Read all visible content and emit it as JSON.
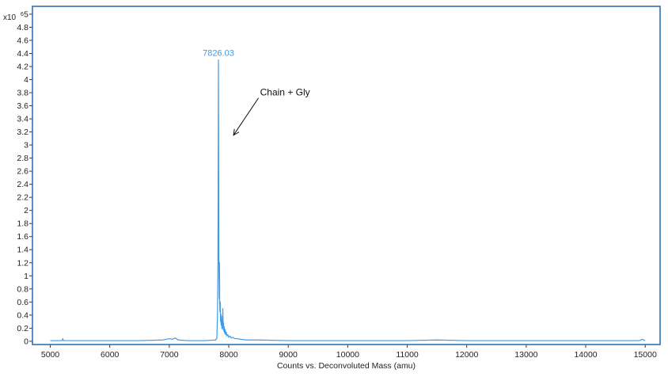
{
  "colors": {
    "series": "#3d9bea",
    "plot_border": "#2f6fb8",
    "axis": "#333333",
    "annotation": "#111111"
  },
  "chart_data": {
    "type": "line",
    "title": "",
    "xlabel": "Counts vs. Deconvoluted Mass (amu)",
    "ylabel": "",
    "y_exponent_prefix": "x10",
    "y_exponent_power": "6",
    "xlim": [
      4700,
      15250
    ],
    "ylim": [
      -0.05,
      5.12
    ],
    "x_ticks": [
      5000,
      6000,
      7000,
      8000,
      9000,
      10000,
      11000,
      12000,
      13000,
      14000,
      15000
    ],
    "x_tick_labels": [
      "5000",
      "6000",
      "7000",
      "8000",
      "9000",
      "10000",
      "11000",
      "12000",
      "13000",
      "14000",
      "15000"
    ],
    "y_ticks": [
      0,
      0.2,
      0.4,
      0.6,
      0.8,
      1,
      1.2,
      1.4,
      1.6,
      1.8,
      2,
      2.2,
      2.4,
      2.6,
      2.8,
      3,
      3.2,
      3.4,
      3.6,
      3.8,
      4,
      4.2,
      4.4,
      4.6,
      4.8,
      5
    ],
    "y_tick_labels": [
      "0",
      "0.2",
      "0.4",
      "0.6",
      "0.8",
      "1",
      "1.2",
      "1.4",
      "1.6",
      "1.8",
      "2",
      "2.2",
      "2.4",
      "2.6",
      "2.8",
      "3",
      "3.2",
      "3.4",
      "3.6",
      "3.8",
      "4",
      "4.2",
      "4.4",
      "4.6",
      "4.8",
      "5"
    ],
    "grid": false,
    "series": [
      {
        "x": [
          5000,
          5200,
          5210,
          5220,
          5400,
          5800,
          6000,
          6500,
          6900,
          7000,
          7050,
          7100,
          7150,
          7300,
          7600,
          7780,
          7800,
          7810,
          7818,
          7822,
          7826.03,
          7830,
          7834,
          7840,
          7844,
          7848,
          7852,
          7856,
          7862,
          7866,
          7872,
          7878,
          7884,
          7890,
          7895,
          7900,
          7906,
          7912,
          7918,
          7925,
          7932,
          7940,
          7948,
          7958,
          7970,
          7985,
          8000,
          8020,
          8040,
          8070,
          8100,
          8140,
          8200,
          8300,
          8500,
          9000,
          10000,
          11000,
          11500,
          12000,
          13000,
          14000,
          14900,
          14950,
          15000
        ],
        "y": [
          0.01,
          0.01,
          0.04,
          0.01,
          0.01,
          0.01,
          0.01,
          0.01,
          0.02,
          0.04,
          0.03,
          0.05,
          0.02,
          0.01,
          0.01,
          0.02,
          0.05,
          0.4,
          1.2,
          2.8,
          4.3,
          2.5,
          1.25,
          0.65,
          1.2,
          0.55,
          0.45,
          0.6,
          0.3,
          0.42,
          0.25,
          0.38,
          0.2,
          0.3,
          0.18,
          0.5,
          0.22,
          0.28,
          0.15,
          0.22,
          0.12,
          0.18,
          0.1,
          0.14,
          0.08,
          0.1,
          0.06,
          0.08,
          0.05,
          0.06,
          0.04,
          0.04,
          0.03,
          0.02,
          0.02,
          0.01,
          0.01,
          0.01,
          0.02,
          0.01,
          0.01,
          0.01,
          0.01,
          0.03,
          0.01
        ]
      }
    ],
    "annotations": [
      {
        "kind": "peak",
        "x": 7826.03,
        "y": 4.3,
        "text": "7826.03"
      },
      {
        "kind": "arrow",
        "text": "Chain + Gly",
        "from": [
          8500,
          3.72
        ],
        "to": [
          8080,
          3.15
        ]
      }
    ]
  }
}
